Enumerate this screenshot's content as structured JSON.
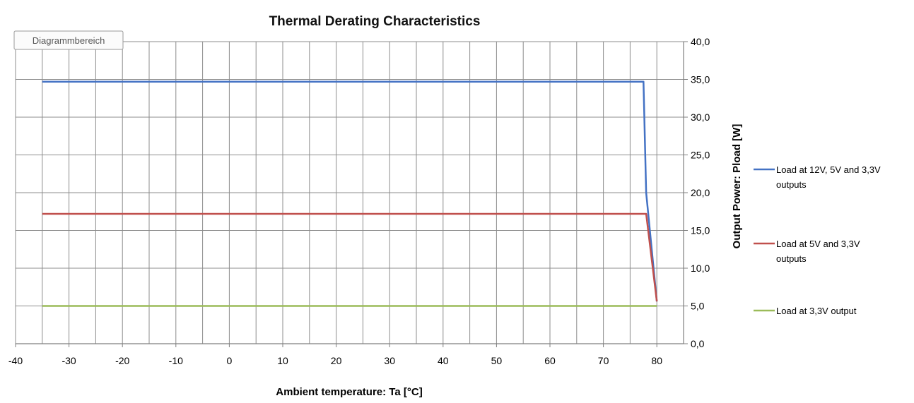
{
  "chart_data": {
    "type": "line",
    "title": "Thermal Derating Characteristics",
    "xlabel": "Ambient temperature: Ta [°C]",
    "ylabel": "Output Power: Pload [W]",
    "xlim": [
      -40,
      85
    ],
    "ylim": [
      0,
      40
    ],
    "x_ticks": [
      -40,
      -30,
      -20,
      -10,
      0,
      10,
      20,
      30,
      40,
      50,
      60,
      70,
      80
    ],
    "x_tick_labels": [
      "-40",
      "-30",
      "-20",
      "-10",
      "0",
      "10",
      "20",
      "30",
      "40",
      "50",
      "60",
      "70",
      "80"
    ],
    "y_ticks": [
      0,
      5,
      10,
      15,
      20,
      25,
      30,
      35,
      40
    ],
    "y_tick_labels": [
      "0,0",
      "5,0",
      "10,0",
      "15,0",
      "20,0",
      "25,0",
      "30,0",
      "35,0",
      "40,0"
    ],
    "y_axis_side": "right",
    "grid": true,
    "legend_position": "right",
    "hover_label": "Diagrammbereich",
    "series": [
      {
        "name": "Load at 12V, 5V and 3,3V outputs",
        "legend_lines": [
          "Load at 12V, 5V and 3,3V",
          "outputs"
        ],
        "color": "#4472c4",
        "points": [
          [
            -35,
            34.7
          ],
          [
            77.5,
            34.7
          ],
          [
            78,
            20
          ],
          [
            80,
            5.6
          ]
        ]
      },
      {
        "name": "Load at 5V and 3,3V outputs",
        "legend_lines": [
          "Load at 5V and 3,3V",
          "outputs"
        ],
        "color": "#c0504d",
        "points": [
          [
            -35,
            17.2
          ],
          [
            78,
            17.2
          ],
          [
            80,
            5.6
          ]
        ]
      },
      {
        "name": "Load at 3,3V output",
        "legend_lines": [
          "Load at 3,3V output"
        ],
        "color": "#9bbb59",
        "points": [
          [
            -35,
            5.0
          ],
          [
            80,
            5.0
          ]
        ]
      }
    ]
  }
}
